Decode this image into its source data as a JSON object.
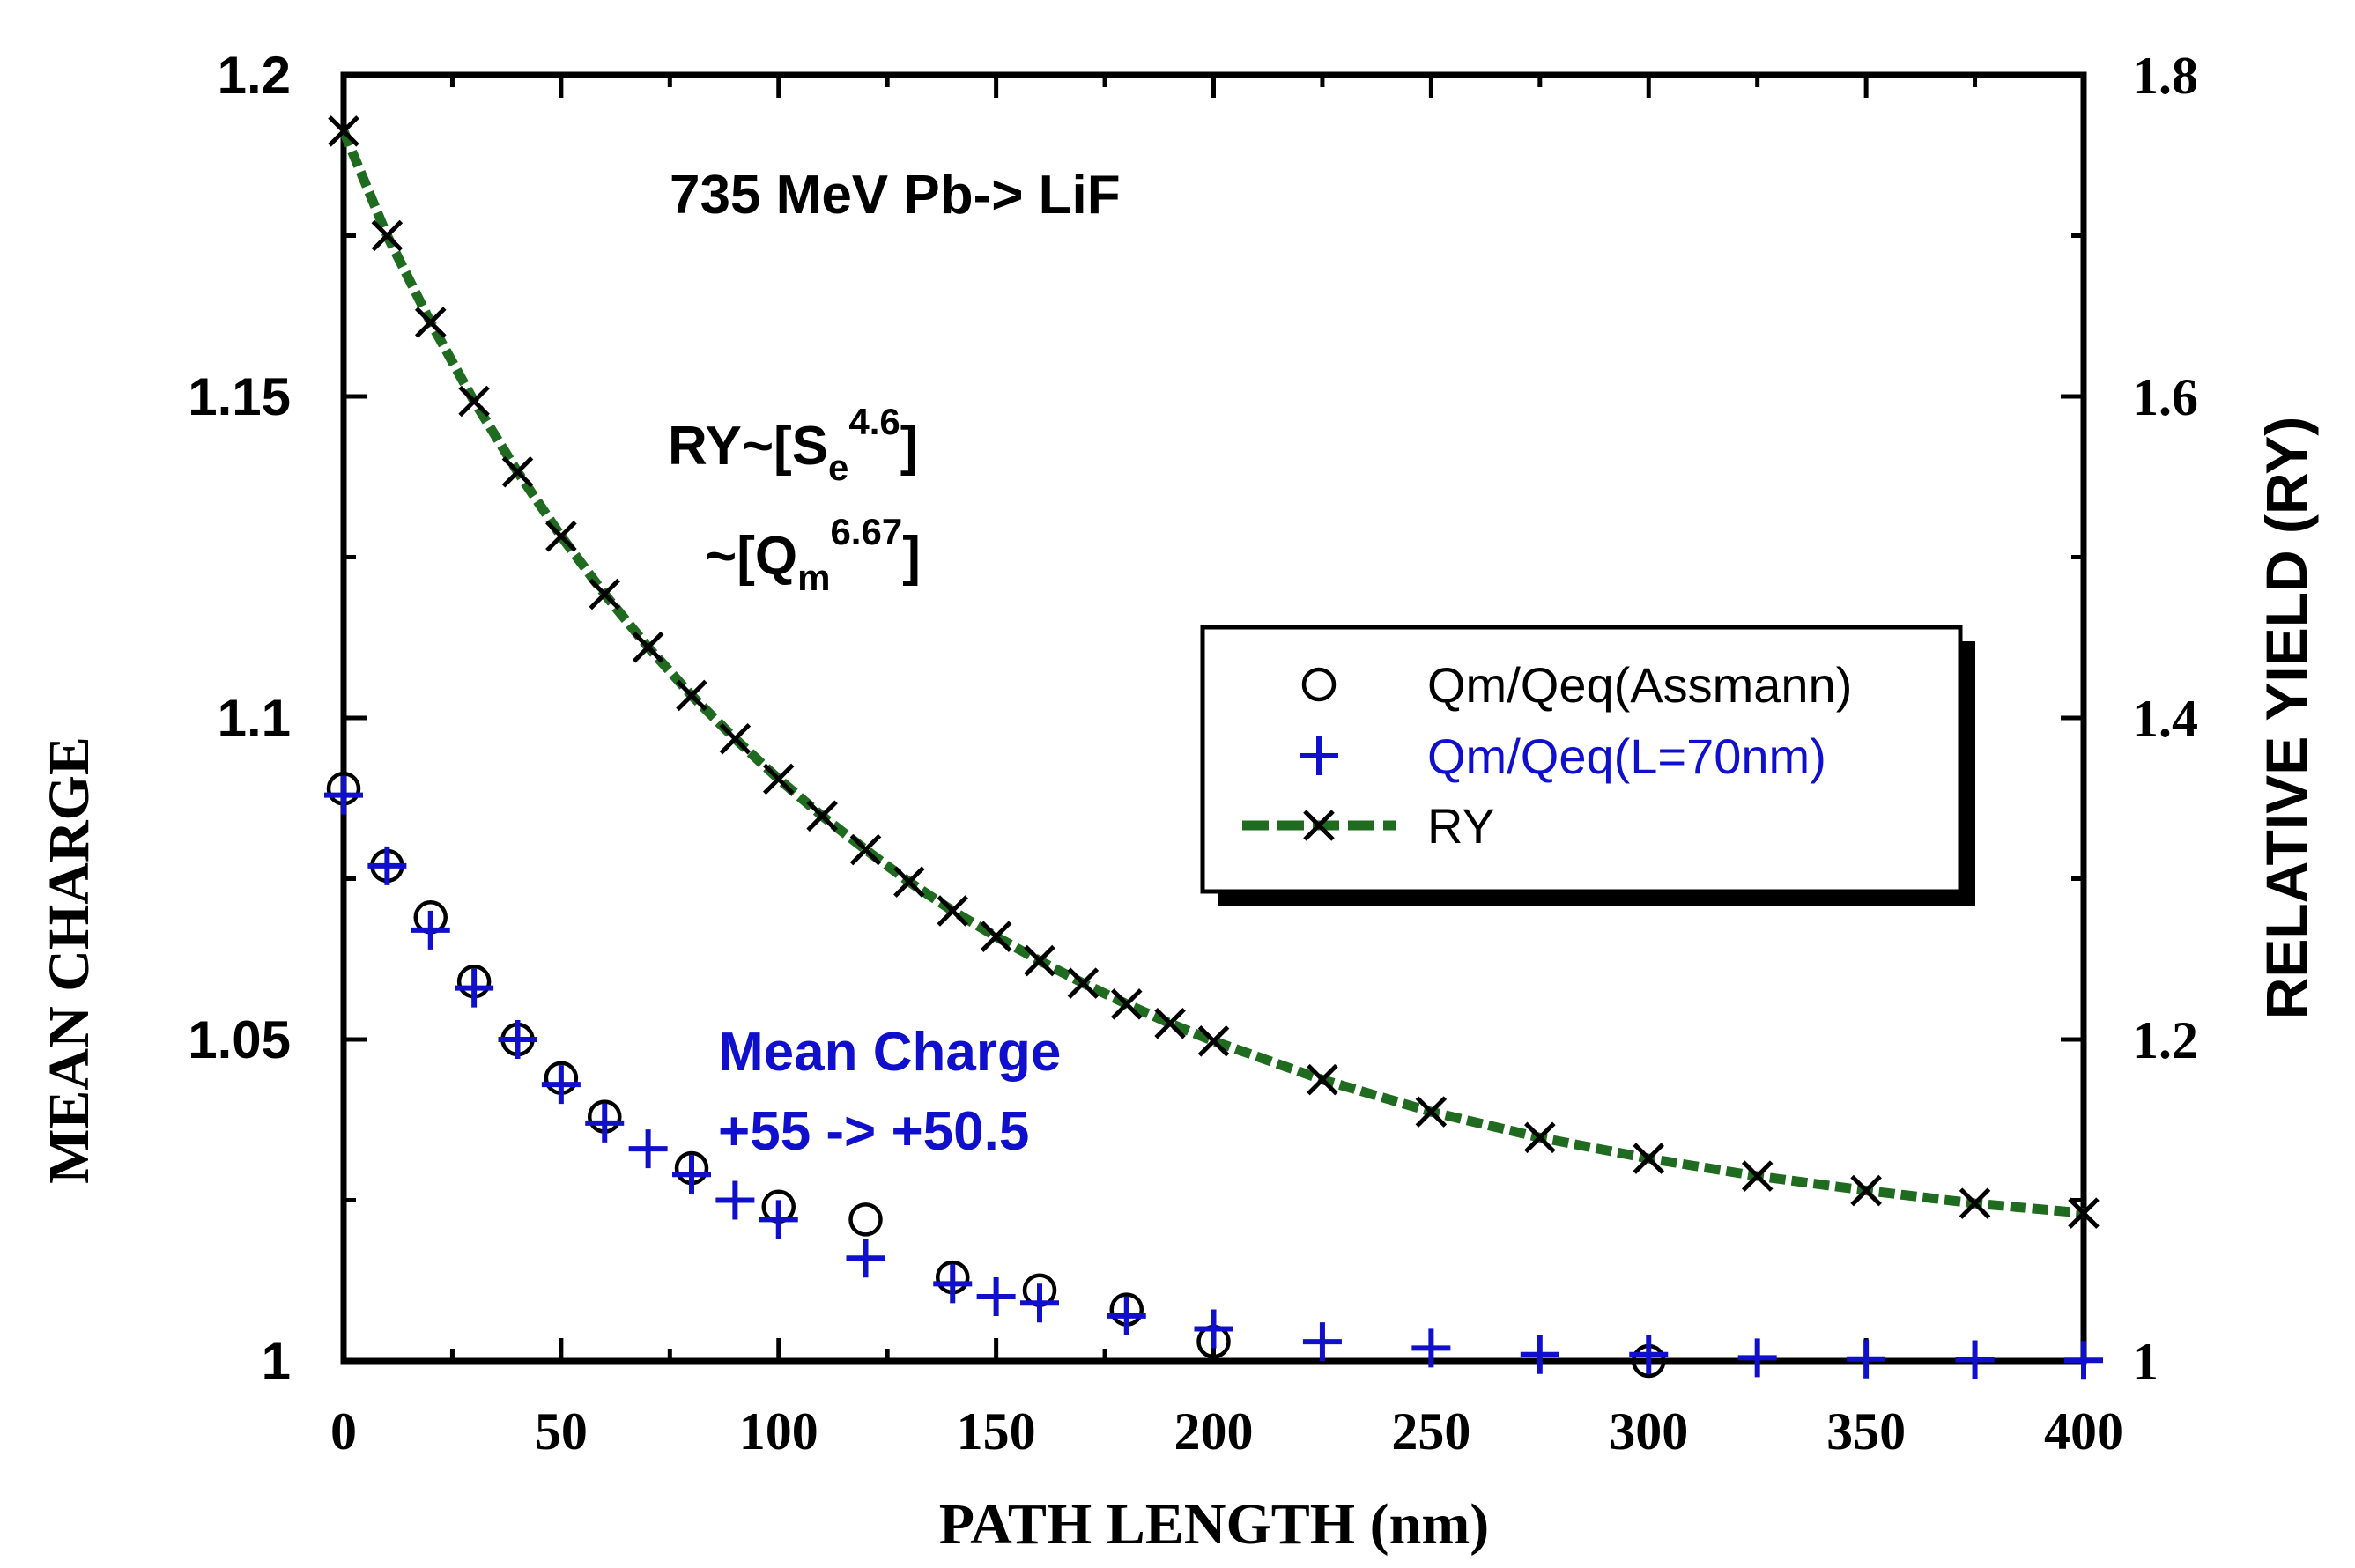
{
  "chart_data": {
    "type": "scatter",
    "title": "735 MeV Pb-> LiF",
    "xlabel": "PATH  LENGTH  (nm)",
    "ylabel": "MEAN CHARGE",
    "y2label": "RELATIVE  YIELD  (RY)",
    "xlim": [
      0,
      400
    ],
    "ylim": [
      1.0,
      1.2
    ],
    "y2lim": [
      1.0,
      1.8
    ],
    "xticks": [
      0,
      50,
      100,
      150,
      200,
      250,
      300,
      350,
      400
    ],
    "xtick_labels": [
      "0",
      "50",
      "100",
      "150",
      "200",
      "250",
      "300",
      "350",
      "400"
    ],
    "yticks": [
      1.0,
      1.05,
      1.1,
      1.15,
      1.2
    ],
    "ytick_labels": [
      "1",
      "1.05",
      "1.1",
      "1.15",
      "1.2"
    ],
    "y2ticks": [
      1.0,
      1.2,
      1.4,
      1.6,
      1.8
    ],
    "y2tick_labels": [
      "1",
      "1.2",
      "1.4",
      "1.6",
      "1.8"
    ],
    "legend_position": "right-center",
    "colors": {
      "black": "#000000",
      "blue": "#1010cc",
      "green": "#1f6b1f"
    },
    "annotations": {
      "formula_line1_main": "RY~[S",
      "formula_line1_sub": "e",
      "formula_line1_sup": "4.6",
      "formula_line1_end": "]",
      "formula_line2_main": "~[Q",
      "formula_line2_sub": "m",
      "formula_line2_sup": "6.67",
      "formula_line2_end": "]",
      "mean_charge_line1": "Mean Charge",
      "mean_charge_line2": "+55 -> +50.5"
    },
    "series": [
      {
        "name": "Qm/Qeq(Assmann)",
        "axis": "left",
        "marker": "circle",
        "color": "#000000",
        "x": [
          0,
          10,
          20,
          30,
          40,
          50,
          60,
          80,
          100,
          120,
          140,
          160,
          180,
          200,
          300
        ],
        "y": [
          1.089,
          1.077,
          1.069,
          1.059,
          1.05,
          1.044,
          1.038,
          1.03,
          1.024,
          1.022,
          1.013,
          1.011,
          1.008,
          1.003,
          1.0
        ]
      },
      {
        "name": "Qm/Qeq(L=70nm)",
        "axis": "left",
        "marker": "plus",
        "color": "#1010cc",
        "x": [
          0,
          10,
          20,
          30,
          40,
          50,
          60,
          70,
          80,
          90,
          100,
          120,
          140,
          150,
          160,
          180,
          200,
          225,
          250,
          275,
          300,
          325,
          350,
          375,
          400
        ],
        "y": [
          1.088,
          1.077,
          1.067,
          1.058,
          1.05,
          1.043,
          1.037,
          1.033,
          1.029,
          1.025,
          1.022,
          1.016,
          1.012,
          1.01,
          1.009,
          1.007,
          1.005,
          1.003,
          1.002,
          1.001,
          1.001,
          1.0005,
          1.0003,
          1.0002,
          1.0001
        ]
      },
      {
        "name": "RY",
        "axis": "right",
        "marker": "x",
        "line": "dashed",
        "color": "#1f6b1f",
        "x": [
          0,
          10,
          20,
          30,
          40,
          50,
          60,
          70,
          80,
          90,
          100,
          110,
          120,
          130,
          140,
          150,
          160,
          170,
          180,
          190,
          200,
          225,
          250,
          275,
          300,
          325,
          350,
          375,
          400
        ],
        "y": [
          1.765,
          1.7,
          1.646,
          1.597,
          1.553,
          1.513,
          1.477,
          1.444,
          1.414,
          1.387,
          1.362,
          1.339,
          1.318,
          1.298,
          1.28,
          1.264,
          1.249,
          1.235,
          1.222,
          1.21,
          1.199,
          1.175,
          1.155,
          1.139,
          1.126,
          1.115,
          1.106,
          1.098,
          1.092
        ]
      }
    ]
  }
}
